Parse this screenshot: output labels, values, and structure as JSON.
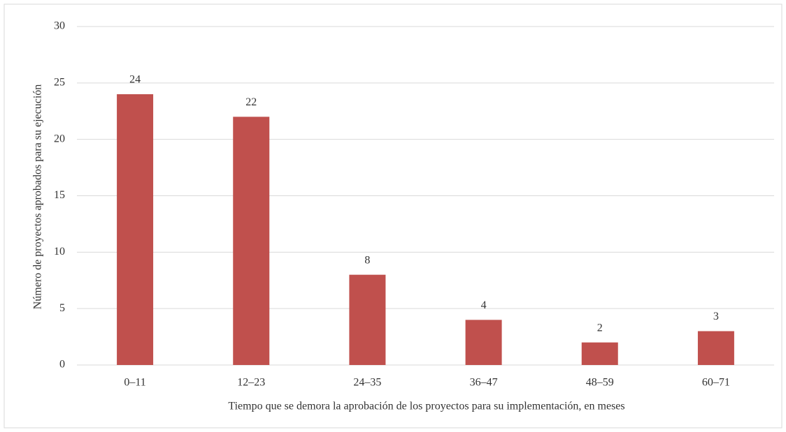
{
  "chart_data": {
    "type": "bar",
    "x_label": "Tiempo que se demora la aprobación de los proyectos para su implementación, en meses",
    "y_label": "Número de proyectos aprobados para su ejecución",
    "categories": [
      "0–11",
      "12–23",
      "24–35",
      "36–47",
      "48–59",
      "60–71"
    ],
    "values": [
      24,
      22,
      8,
      4,
      2,
      3
    ],
    "color": "#c0504d",
    "ylim": [
      0,
      30
    ],
    "yticks": [
      0,
      5,
      10,
      15,
      20,
      25,
      30
    ],
    "grid": true
  }
}
